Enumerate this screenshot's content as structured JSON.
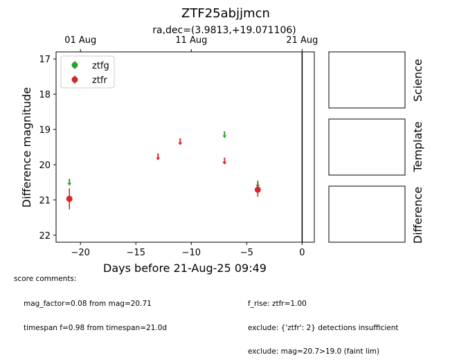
{
  "title": "ZTF25abjjmcn",
  "subtitle": "ra,dec=(3.9813,+19.071106)",
  "chart_data": {
    "type": "scatter",
    "xlabel": "Days before 21-Aug-25 09:49",
    "ylabel": "Difference magnitude",
    "xlim": [
      -22.2,
      1.1
    ],
    "ylim": [
      22.2,
      16.8
    ],
    "y_inverted": true,
    "grid": false,
    "legend_position": "top-left",
    "x_ticks": [
      -20,
      -15,
      -10,
      -5,
      0
    ],
    "x_tick_labels": [
      "−20",
      "−15",
      "−10",
      "−5",
      "0"
    ],
    "y_ticks": [
      17,
      18,
      19,
      20,
      21,
      22
    ],
    "top_axis": {
      "ticks": [
        -20.0,
        -10.0,
        0.0
      ],
      "labels": [
        "01 Aug",
        "11 Aug",
        "21 Aug"
      ]
    },
    "vline_x": 0,
    "series": [
      {
        "name": "ztfg",
        "color": "#2ca02c",
        "detections": [],
        "upper_limits": [
          {
            "x": -21.0,
            "y": 20.5
          },
          {
            "x": -7.0,
            "y": 19.15
          },
          {
            "x": -4.0,
            "y": 20.55
          }
        ]
      },
      {
        "name": "ztfr",
        "color": "#d62728",
        "detections": [
          {
            "x": -21.0,
            "y": 20.97,
            "err": 0.3
          },
          {
            "x": -4.0,
            "y": 20.71,
            "err": 0.2
          }
        ],
        "upper_limits": [
          {
            "x": -13.0,
            "y": 19.78
          },
          {
            "x": -11.0,
            "y": 19.35
          },
          {
            "x": -7.0,
            "y": 19.9
          }
        ]
      }
    ]
  },
  "cutouts": {
    "science_label": "Science",
    "template_label": "Template",
    "difference_label": "Difference"
  },
  "comments": {
    "heading": "score comments:",
    "left": [
      "mag_factor=0.08 from mag=20.71",
      "timespan f=0.98 from timespan=21.0d"
    ],
    "right": [
      "f_rise: ztfr=1.00",
      "exclude: {'ztfr': 2} detections insufficient",
      "exclude: mag=20.7>19.0 (faint lim)"
    ]
  }
}
